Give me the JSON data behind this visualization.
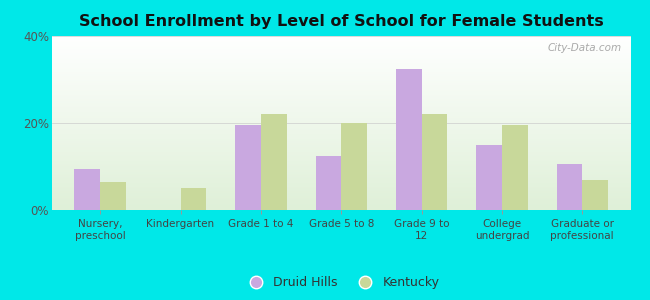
{
  "title": "School Enrollment by Level of School for Female Students",
  "categories": [
    "Nursery,\npreschool",
    "Kindergarten",
    "Grade 1 to 4",
    "Grade 5 to 8",
    "Grade 9 to\n12",
    "College\nundergrad",
    "Graduate or\nprofessional"
  ],
  "druid_hills": [
    9.5,
    0,
    19.5,
    12.5,
    32.5,
    15.0,
    10.5
  ],
  "kentucky": [
    6.5,
    5.0,
    22.0,
    20.0,
    22.0,
    19.5,
    7.0
  ],
  "druid_color": "#c9a8e0",
  "kentucky_color": "#c8d89a",
  "background_color": "#00e8e8",
  "ylim": [
    0,
    40
  ],
  "yticks": [
    0,
    20,
    40
  ],
  "ytick_labels": [
    "0%",
    "20%",
    "40%"
  ],
  "bar_width": 0.32,
  "legend_druid": "Druid Hills",
  "legend_kentucky": "Kentucky",
  "watermark": "City-Data.com"
}
